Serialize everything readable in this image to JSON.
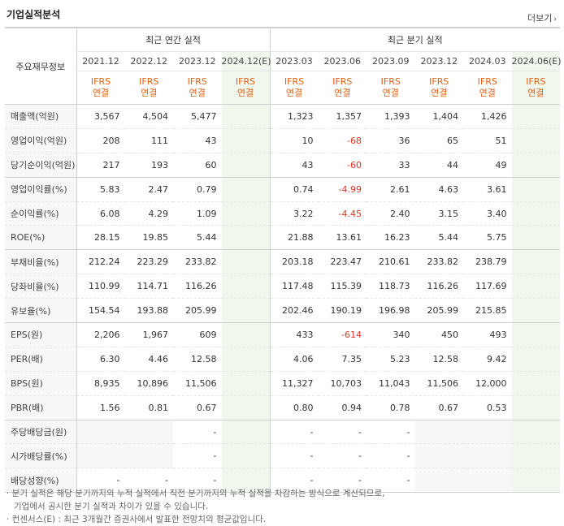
{
  "header": {
    "title": "기업실적분석",
    "more_label": "더보기",
    "more_arrow": "›"
  },
  "table": {
    "corner_label": "주요재무정보",
    "annual_group": "최근 연간 실적",
    "quarter_group": "최근 분기 실적",
    "periods": [
      "2021.12",
      "2022.12",
      "2023.12",
      "2024.12(E)",
      "2023.03",
      "2023.06",
      "2023.09",
      "2023.12",
      "2024.03",
      "2024.06(E)"
    ],
    "basis_top": "IFRS",
    "basis_bottom": "연결",
    "rows": [
      {
        "label": "매출액(억원)",
        "values": [
          "3,567",
          "4,504",
          "5,477",
          "",
          "1,323",
          "1,357",
          "1,393",
          "1,404",
          "1,426",
          ""
        ]
      },
      {
        "label": "영업이익(억원)",
        "values": [
          "208",
          "111",
          "43",
          "",
          "10",
          "-68",
          "36",
          "65",
          "51",
          ""
        ]
      },
      {
        "label": "당기순이익(억원)",
        "values": [
          "217",
          "193",
          "60",
          "",
          "43",
          "-60",
          "33",
          "44",
          "49",
          ""
        ]
      },
      {
        "label": "영업이익률(%)",
        "values": [
          "5.83",
          "2.47",
          "0.79",
          "",
          "0.74",
          "-4.99",
          "2.61",
          "4.63",
          "3.61",
          ""
        ]
      },
      {
        "label": "순이익률(%)",
        "values": [
          "6.08",
          "4.29",
          "1.09",
          "",
          "3.22",
          "-4.45",
          "2.40",
          "3.15",
          "3.40",
          ""
        ]
      },
      {
        "label": "ROE(%)",
        "values": [
          "28.15",
          "19.85",
          "5.44",
          "",
          "21.88",
          "13.61",
          "16.23",
          "5.44",
          "5.75",
          ""
        ]
      },
      {
        "label": "부채비율(%)",
        "values": [
          "212.24",
          "223.29",
          "233.82",
          "",
          "203.18",
          "223.47",
          "210.61",
          "233.82",
          "238.79",
          ""
        ]
      },
      {
        "label": "당좌비율(%)",
        "values": [
          "110.99",
          "114.71",
          "116.26",
          "",
          "117.48",
          "115.39",
          "118.73",
          "116.26",
          "117.69",
          ""
        ]
      },
      {
        "label": "유보율(%)",
        "values": [
          "154.54",
          "193.88",
          "205.99",
          "",
          "202.46",
          "190.19",
          "196.98",
          "205.99",
          "215.85",
          ""
        ]
      },
      {
        "label": "EPS(원)",
        "values": [
          "2,206",
          "1,967",
          "609",
          "",
          "433",
          "-614",
          "340",
          "450",
          "493",
          ""
        ]
      },
      {
        "label": "PER(배)",
        "values": [
          "6.30",
          "4.46",
          "12.58",
          "",
          "4.06",
          "7.35",
          "5.23",
          "12.58",
          "9.42",
          ""
        ]
      },
      {
        "label": "BPS(원)",
        "values": [
          "8,935",
          "10,896",
          "11,506",
          "",
          "11,327",
          "10,703",
          "11,043",
          "11,506",
          "12,000",
          ""
        ]
      },
      {
        "label": "PBR(배)",
        "values": [
          "1.56",
          "0.81",
          "0.67",
          "",
          "0.80",
          "0.94",
          "0.78",
          "0.67",
          "0.53",
          ""
        ]
      },
      {
        "label": "주당배당금(원)",
        "values": [
          "",
          "",
          "-",
          "",
          "-",
          "-",
          "-",
          "",
          "",
          ""
        ]
      },
      {
        "label": "시가배당률(%)",
        "values": [
          "",
          "",
          "-",
          "",
          "-",
          "-",
          "-",
          "",
          "",
          ""
        ]
      },
      {
        "label": "배당성향(%)",
        "values": [
          "-",
          "-",
          "-",
          "",
          "-",
          "-",
          "-",
          "",
          "",
          ""
        ]
      }
    ]
  },
  "notes": [
    "· 분기 실적은 해당 분기까지의 누적 실적에서 직전 분기까지의 누적 실적을 차감하는 방식으로 계산되므로,",
    "기업에서 공시한 분기 실적과 차이가 있을 수 있습니다.",
    "· 컨센서스(E) : 최근 3개월간 증권사에서 발표한 전망치의 평균값입니다."
  ],
  "colors": {
    "negative": "#e0342b",
    "basis": "#e26012",
    "estimate_bg": "#f0f8ee",
    "label_bg": "#f7f7f7"
  }
}
